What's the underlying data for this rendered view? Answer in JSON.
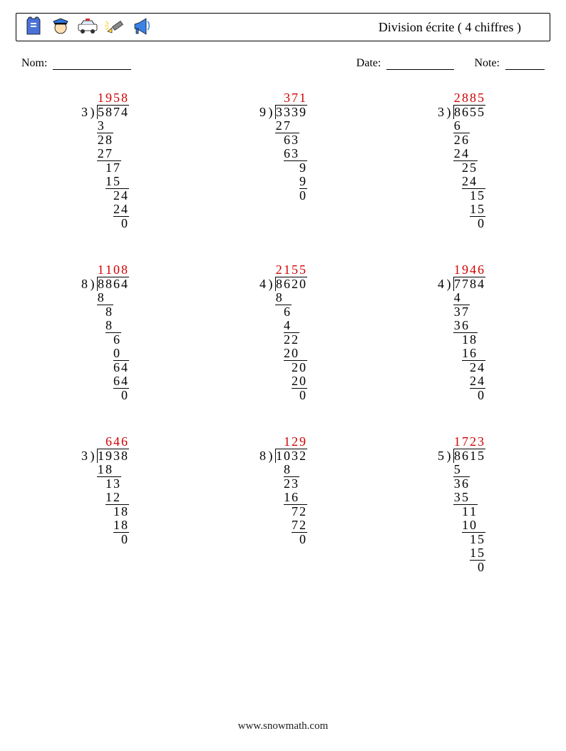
{
  "title": "Division écrite ( 4 chiffres )",
  "labels": {
    "name": "Nom:",
    "date": "Date:",
    "note": "Note:"
  },
  "underline_widths": {
    "name": 110,
    "date": 95,
    "note": 55
  },
  "footer": "www.snowmath.com",
  "colors": {
    "quotient": "#d00000",
    "text": "#000000",
    "border": "#000000"
  },
  "font": {
    "family": "Times New Roman",
    "size_body": 18,
    "size_title": 18,
    "size_labels": 16
  },
  "problems": [
    {
      "divisor": "3",
      "dividend": "5874",
      "quotient": "1958",
      "steps": [
        {
          "v": "3",
          "end": 1,
          "rule_end": 2
        },
        {
          "v": "28",
          "end": 2
        },
        {
          "v": "27",
          "end": 2,
          "rule_end": 3
        },
        {
          "v": "17",
          "end": 3
        },
        {
          "v": "15",
          "end": 3,
          "rule_end": 4
        },
        {
          "v": "24",
          "end": 4
        },
        {
          "v": "24",
          "end": 4,
          "rule_end": 4
        },
        {
          "v": "0",
          "end": 4
        }
      ]
    },
    {
      "divisor": "9",
      "dividend": "3339",
      "quotient": "371",
      "steps": [
        {
          "v": "27",
          "end": 2,
          "rule_end": 3
        },
        {
          "v": "63",
          "end": 3
        },
        {
          "v": "63",
          "end": 3,
          "rule_end": 4
        },
        {
          "v": "9",
          "end": 4
        },
        {
          "v": "9",
          "end": 4,
          "rule_end": 4
        },
        {
          "v": "0",
          "end": 4
        }
      ]
    },
    {
      "divisor": "3",
      "dividend": "8655",
      "quotient": "2885",
      "steps": [
        {
          "v": "6",
          "end": 1,
          "rule_end": 2
        },
        {
          "v": "26",
          "end": 2
        },
        {
          "v": "24",
          "end": 2,
          "rule_end": 3
        },
        {
          "v": "25",
          "end": 3
        },
        {
          "v": "24",
          "end": 3,
          "rule_end": 4
        },
        {
          "v": "15",
          "end": 4
        },
        {
          "v": "15",
          "end": 4,
          "rule_end": 4
        },
        {
          "v": "0",
          "end": 4
        }
      ]
    },
    {
      "divisor": "8",
      "dividend": "8864",
      "quotient": "1108",
      "steps": [
        {
          "v": "8",
          "end": 1,
          "rule_end": 2
        },
        {
          "v": "8",
          "end": 2
        },
        {
          "v": "8",
          "end": 2,
          "rule_end": 3
        },
        {
          "v": "6",
          "end": 3
        },
        {
          "v": "0",
          "end": 3,
          "rule_end": 4
        },
        {
          "v": "64",
          "end": 4
        },
        {
          "v": "64",
          "end": 4,
          "rule_end": 4
        },
        {
          "v": "0",
          "end": 4
        }
      ]
    },
    {
      "divisor": "4",
      "dividend": "8620",
      "quotient": "2155",
      "steps": [
        {
          "v": "8",
          "end": 1,
          "rule_end": 2
        },
        {
          "v": "6",
          "end": 2
        },
        {
          "v": "4",
          "end": 2,
          "rule_end": 3
        },
        {
          "v": "22",
          "end": 3
        },
        {
          "v": "20",
          "end": 3,
          "rule_end": 4
        },
        {
          "v": "20",
          "end": 4
        },
        {
          "v": "20",
          "end": 4,
          "rule_end": 4
        },
        {
          "v": "0",
          "end": 4
        }
      ]
    },
    {
      "divisor": "4",
      "dividend": "7784",
      "quotient": "1946",
      "steps": [
        {
          "v": "4",
          "end": 1,
          "rule_end": 2
        },
        {
          "v": "37",
          "end": 2
        },
        {
          "v": "36",
          "end": 2,
          "rule_end": 3
        },
        {
          "v": "18",
          "end": 3
        },
        {
          "v": "16",
          "end": 3,
          "rule_end": 4
        },
        {
          "v": "24",
          "end": 4
        },
        {
          "v": "24",
          "end": 4,
          "rule_end": 4
        },
        {
          "v": "0",
          "end": 4
        }
      ]
    },
    {
      "divisor": "3",
      "dividend": "1938",
      "quotient": "646",
      "steps": [
        {
          "v": "18",
          "end": 2,
          "rule_end": 3
        },
        {
          "v": "13",
          "end": 3
        },
        {
          "v": "12",
          "end": 3,
          "rule_end": 4
        },
        {
          "v": "18",
          "end": 4
        },
        {
          "v": "18",
          "end": 4,
          "rule_end": 4
        },
        {
          "v": "0",
          "end": 4
        }
      ]
    },
    {
      "divisor": "8",
      "dividend": "1032",
      "quotient": "129",
      "steps": [
        {
          "v": "8",
          "end": 2,
          "rule_end": 3
        },
        {
          "v": "23",
          "end": 3
        },
        {
          "v": "16",
          "end": 3,
          "rule_end": 4
        },
        {
          "v": "72",
          "end": 4
        },
        {
          "v": "72",
          "end": 4,
          "rule_end": 4
        },
        {
          "v": "0",
          "end": 4
        }
      ]
    },
    {
      "divisor": "5",
      "dividend": "8615",
      "quotient": "1723",
      "steps": [
        {
          "v": "5",
          "end": 1,
          "rule_end": 2
        },
        {
          "v": "36",
          "end": 2
        },
        {
          "v": "35",
          "end": 2,
          "rule_end": 3
        },
        {
          "v": "11",
          "end": 3
        },
        {
          "v": "10",
          "end": 3,
          "rule_end": 4
        },
        {
          "v": "15",
          "end": 4
        },
        {
          "v": "15",
          "end": 4,
          "rule_end": 4
        },
        {
          "v": "0",
          "end": 4
        }
      ]
    }
  ]
}
